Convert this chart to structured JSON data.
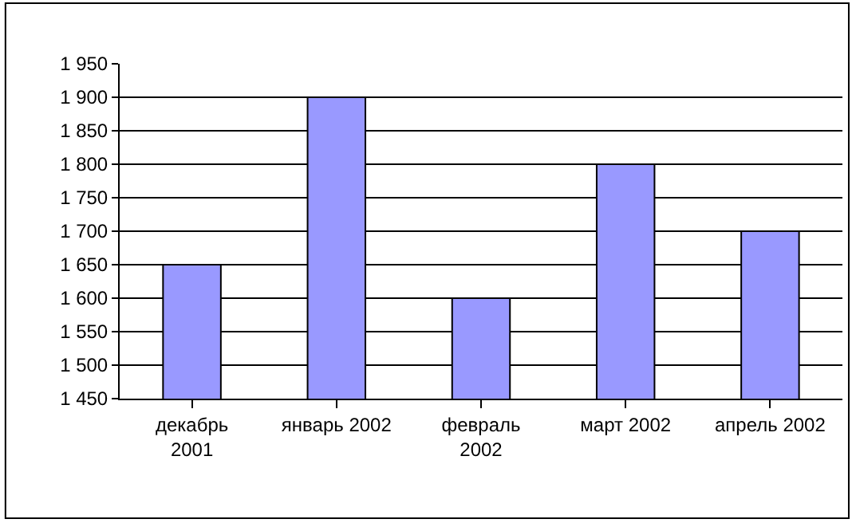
{
  "chart_data": {
    "type": "bar",
    "categories": [
      "декабрь 2001",
      "январь 2002",
      "февраль 2002",
      "март 2002",
      "апрель 2002"
    ],
    "values": [
      1650,
      1900,
      1600,
      1800,
      1700
    ],
    "color": "#9999ff",
    "ylim": [
      1450,
      1950
    ],
    "yticks": [
      {
        "value": 1450,
        "label": "1 450"
      },
      {
        "value": 1500,
        "label": "1 500"
      },
      {
        "value": 1550,
        "label": "1 550"
      },
      {
        "value": 1600,
        "label": "1 600"
      },
      {
        "value": 1650,
        "label": "1 650"
      },
      {
        "value": 1700,
        "label": "1 700"
      },
      {
        "value": 1750,
        "label": "1 750"
      },
      {
        "value": 1800,
        "label": "1 800"
      },
      {
        "value": 1850,
        "label": "1 850"
      },
      {
        "value": 1900,
        "label": "1 900"
      },
      {
        "value": 1950,
        "label": "1 950"
      }
    ],
    "grid": "y"
  }
}
